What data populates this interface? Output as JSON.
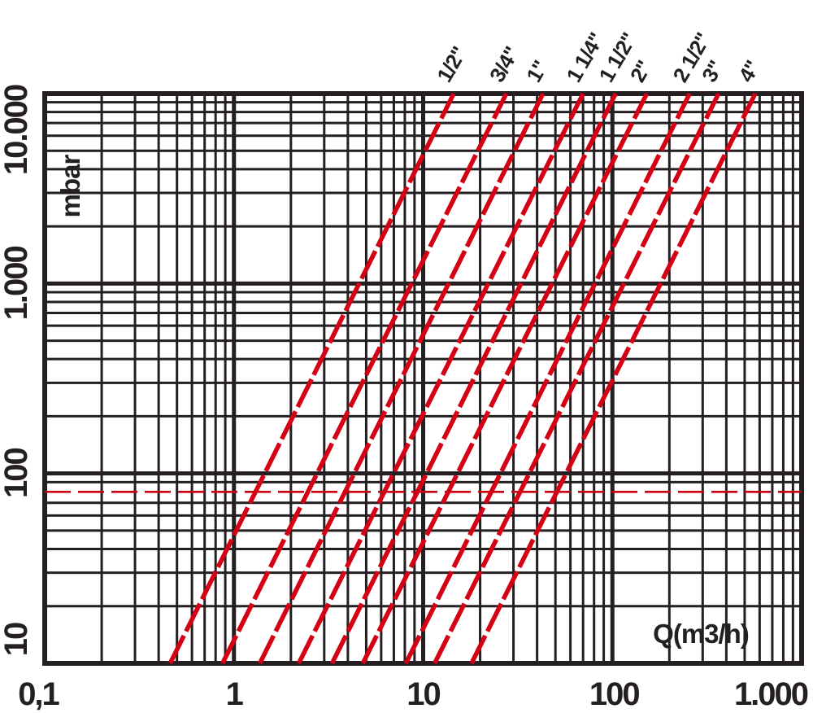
{
  "figure": {
    "background_color": "#ffffff",
    "grid_color": "#241f21",
    "curve_color": "#d40014",
    "reference_line_color": "#cc0011"
  },
  "axes": {
    "x": {
      "label": "Q(m3/h)",
      "scale": "log",
      "min": 0.1,
      "max": 1000,
      "tick_values": [
        0.1,
        1,
        10,
        100,
        1000
      ],
      "tick_labels": [
        "0,1",
        "1",
        "10",
        "100",
        "1.000"
      ]
    },
    "y": {
      "label": "mbar",
      "scale": "log",
      "min": 10,
      "max": 10000,
      "tick_values": [
        10,
        100,
        1000,
        10000
      ],
      "tick_labels": [
        "10",
        "100",
        "1.000",
        "10.000"
      ]
    }
  },
  "chart_data": {
    "type": "line",
    "title": "",
    "xlabel": "Q(m3/h)",
    "ylabel": "mbar",
    "xscale": "log",
    "yscale": "log",
    "xlim": [
      0.1,
      1000
    ],
    "ylim": [
      10,
      10000
    ],
    "grid": "log major + minor, on",
    "legend_position": "labels rotated above each line at top edge",
    "line_style": "thick red dashed straight lines, slope 2 in log-log (dp proportional to Q^2)",
    "series": [
      {
        "name": "1/2\"",
        "points": [
          [
            0.46,
            10
          ],
          [
            14.5,
            10000
          ]
        ]
      },
      {
        "name": "3/4\"",
        "points": [
          [
            0.87,
            10
          ],
          [
            27.5,
            10000
          ]
        ]
      },
      {
        "name": "1\"",
        "points": [
          [
            1.37,
            10
          ],
          [
            43,
            10000
          ]
        ]
      },
      {
        "name": "1 1/4\"",
        "points": [
          [
            2.2,
            10
          ],
          [
            70,
            10000
          ]
        ]
      },
      {
        "name": "1 1/2\"",
        "points": [
          [
            3.3,
            10
          ],
          [
            104,
            10000
          ]
        ]
      },
      {
        "name": "2\"",
        "points": [
          [
            4.8,
            10
          ],
          [
            152,
            10000
          ]
        ]
      },
      {
        "name": "2 1/2\"",
        "points": [
          [
            8.1,
            10
          ],
          [
            256,
            10000
          ]
        ]
      },
      {
        "name": "3\"",
        "points": [
          [
            11.5,
            10
          ],
          [
            364,
            10000
          ]
        ]
      },
      {
        "name": "4\"",
        "points": [
          [
            18,
            10
          ],
          [
            569,
            10000
          ]
        ]
      }
    ],
    "reference_line": {
      "y_mbar": 80,
      "style": "dashed thin red",
      "spans": "full width"
    }
  }
}
